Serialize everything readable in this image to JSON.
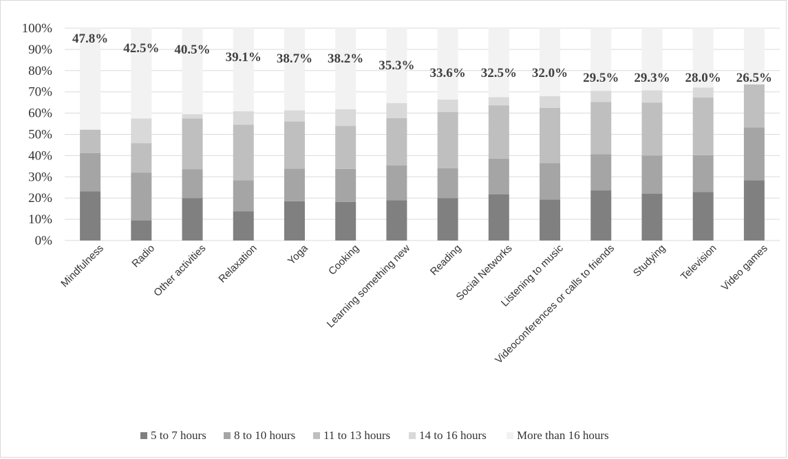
{
  "chart_data": {
    "type": "bar",
    "stacked": true,
    "categories": [
      "Mindfulness",
      "Radio",
      "Other activities",
      "Relaxation",
      "Yoga",
      "Cooking",
      "Learning something new",
      "Reading",
      "Social Networks",
      "Listening to music",
      "Videoconferences or calls to friends",
      "Studying",
      "Television",
      "Video games"
    ],
    "series": [
      {
        "name": "5 to 7 hours",
        "color": "#808080",
        "values": [
          23.2,
          9.5,
          20.0,
          13.8,
          18.5,
          18.2,
          19.0,
          20.0,
          21.8,
          19.3,
          23.6,
          22.0,
          22.8,
          28.3
        ]
      },
      {
        "name": "8 to 10 hours",
        "color": "#a5a5a5",
        "values": [
          18.0,
          22.5,
          13.5,
          14.5,
          15.3,
          15.5,
          16.4,
          14.0,
          16.8,
          17.2,
          17.0,
          18.0,
          17.4,
          25.0
        ]
      },
      {
        "name": "11 to 13 hours",
        "color": "#bfbfbf",
        "values": [
          11.0,
          13.8,
          24.0,
          26.3,
          22.2,
          20.3,
          22.3,
          26.5,
          25.0,
          26.0,
          24.6,
          25.0,
          27.2,
          20.2
        ]
      },
      {
        "name": "14 to 16 hours",
        "color": "#d9d9d9",
        "values": [
          0.0,
          11.7,
          2.0,
          6.3,
          5.3,
          7.8,
          7.0,
          5.9,
          3.9,
          5.5,
          5.3,
          5.7,
          4.6,
          0.0
        ]
      },
      {
        "name": "More than 16 hours",
        "color": "#f2f2f2",
        "values": [
          47.8,
          42.5,
          40.5,
          39.1,
          38.7,
          38.2,
          35.3,
          33.6,
          32.5,
          32.0,
          29.5,
          29.3,
          28.0,
          26.5
        ]
      }
    ],
    "data_labels": [
      "47.8%",
      "42.5%",
      "40.5%",
      "39.1%",
      "38.7%",
      "38.2%",
      "35.3%",
      "33.6%",
      "32.5%",
      "32.0%",
      "29.5%",
      "29.3%",
      "28.0%",
      "26.5%"
    ],
    "ylim": [
      0,
      100
    ],
    "yticks": [
      "0%",
      "10%",
      "20%",
      "30%",
      "40%",
      "50%",
      "60%",
      "70%",
      "80%",
      "90%",
      "100%"
    ],
    "title": "",
    "xlabel": "",
    "ylabel": "",
    "grid": true,
    "legend_position": "bottom"
  }
}
